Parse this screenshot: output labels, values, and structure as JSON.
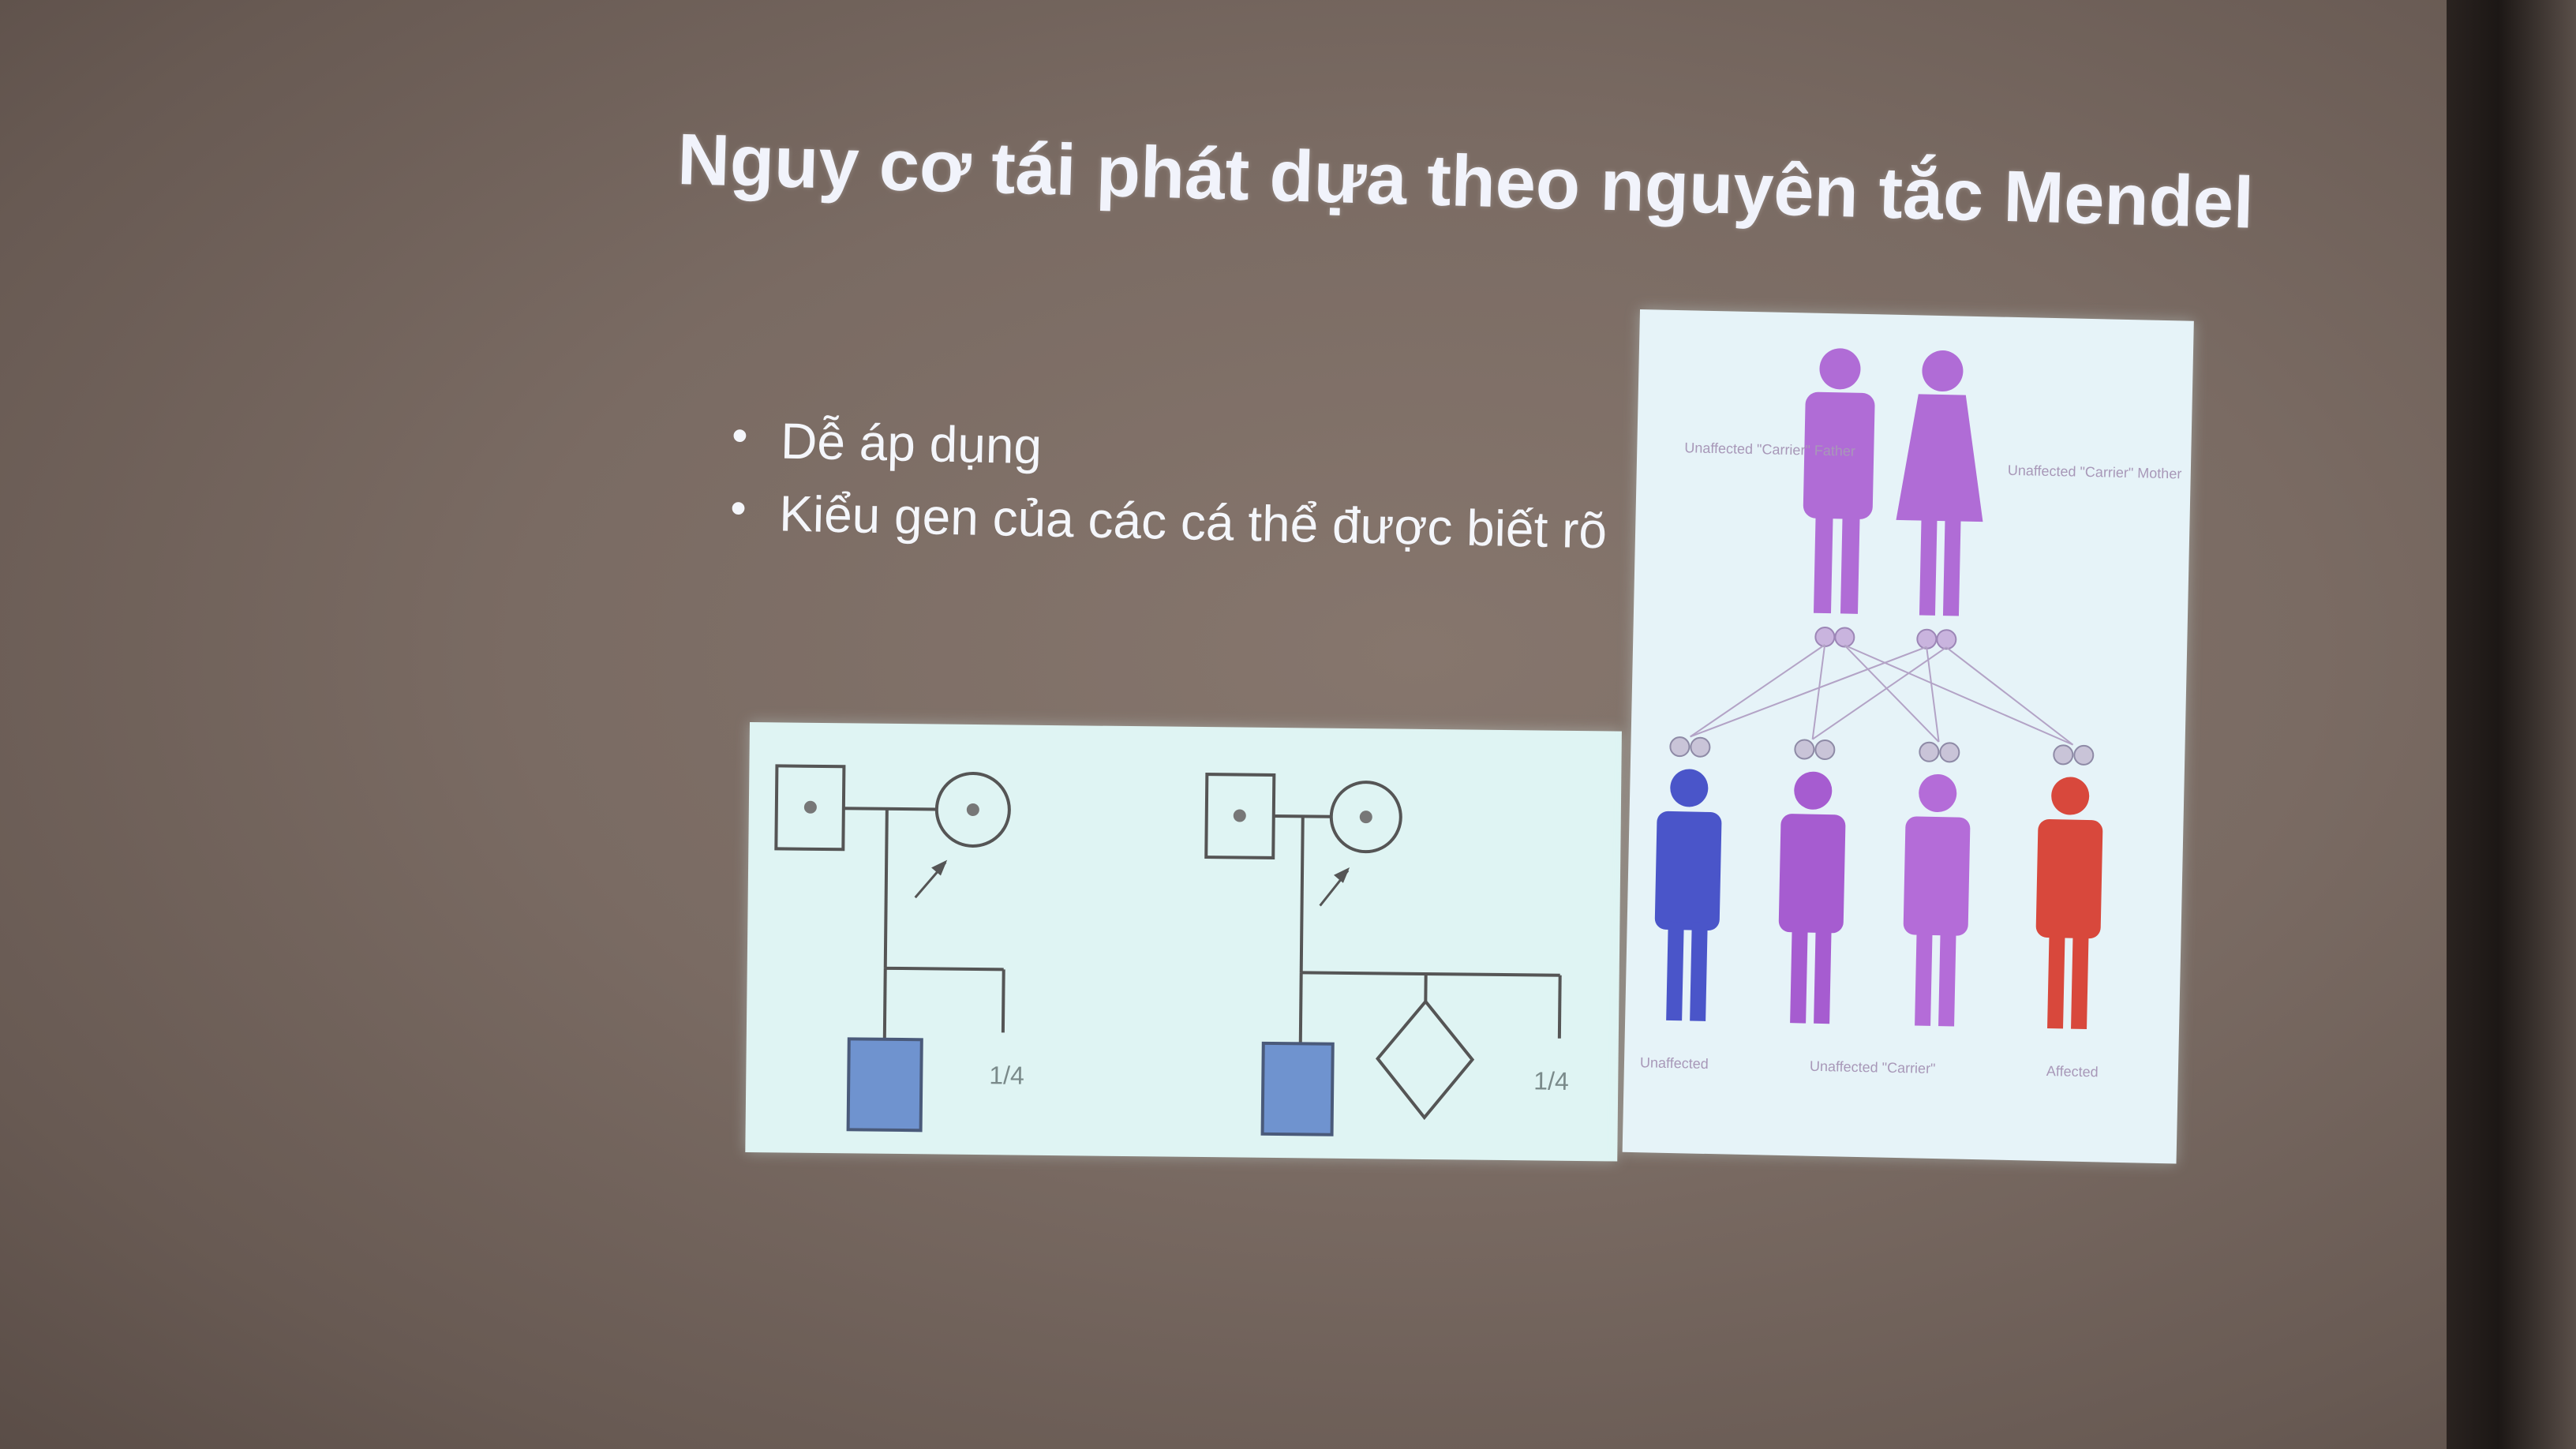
{
  "slide": {
    "title": "Nguy cơ tái phát dựa theo nguyên tắc Mendel",
    "bullets": [
      "Dễ áp dụng",
      "Kiểu gen của các cá thể được biết rõ"
    ]
  },
  "pedigrees": [
    {
      "probability_label": "1/4"
    },
    {
      "probability_label": "1/4"
    }
  ],
  "inheritance_figure": {
    "parent_colors": "#b06cd6",
    "offspring_colors": [
      "#4a55c9",
      "#a65cd0",
      "#b46cd8",
      "#d8483c"
    ],
    "parent_labels": [
      "Unaffected \"Carrier\" Father",
      "Unaffected \"Carrier\" Mother"
    ],
    "offspring_labels": [
      "Unaffected",
      "Unaffected \"Carrier\"",
      "Affected"
    ]
  }
}
